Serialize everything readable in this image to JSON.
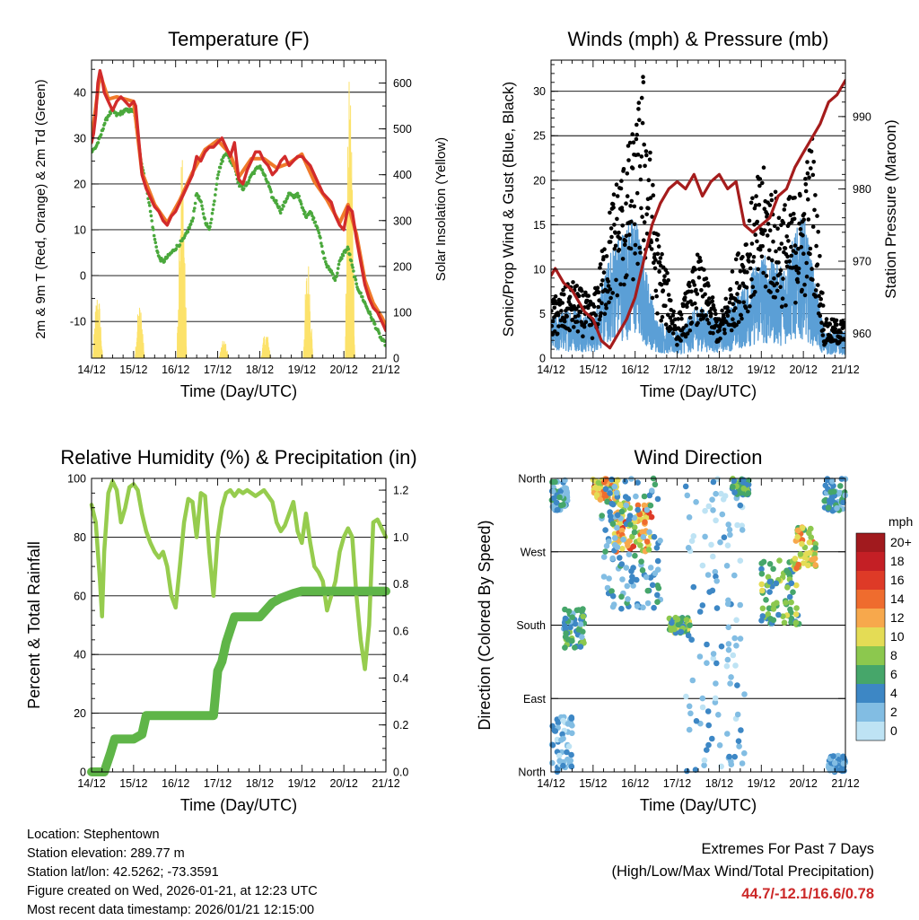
{
  "palette": {
    "temp_2m": "#d22b2b",
    "temp_9m": "#f07a2a",
    "dewpoint": "#4aa83c",
    "solar": "#fce26a",
    "wind": "#5b9fd6",
    "gust": "#000000",
    "pressure": "#a51c1c",
    "rh": "#96cc4e",
    "precip": "#5fb548"
  },
  "chart_data": [
    {
      "id": "temperature",
      "type": "line",
      "title": "Temperature (F)",
      "xlabel": "Time (Day/UTC)",
      "ylabel": "2m & 9m T (Red, Orange) & 2m Td (Green)",
      "y2label": "Solar Insolation (Yellow)",
      "x_ticks": [
        "14/12",
        "15/12",
        "16/12",
        "17/12",
        "18/12",
        "19/12",
        "20/12",
        "21/12"
      ],
      "xlim": [
        0,
        7
      ],
      "ylim": [
        -18,
        47
      ],
      "y_ticks": [
        -10,
        0,
        10,
        20,
        30,
        40
      ],
      "y2lim": [
        0,
        650
      ],
      "y2_ticks": [
        0,
        100,
        200,
        300,
        400,
        500,
        600
      ],
      "series": [
        {
          "name": "2m T",
          "axis": "left",
          "x": [
            0,
            0.05,
            0.1,
            0.15,
            0.2,
            0.25,
            0.3,
            0.4,
            0.5,
            0.6,
            0.7,
            0.8,
            0.9,
            1.0,
            1.05,
            1.1,
            1.2,
            1.3,
            1.35,
            1.45,
            1.5,
            1.6,
            1.7,
            1.8,
            1.9,
            2.0,
            2.1,
            2.2,
            2.3,
            2.4,
            2.5,
            2.6,
            2.7,
            2.8,
            2.9,
            3.0,
            3.1,
            3.2,
            3.3,
            3.4,
            3.5,
            3.6,
            3.7,
            3.8,
            3.9,
            4.0,
            4.1,
            4.2,
            4.3,
            4.4,
            4.5,
            4.6,
            4.7,
            4.8,
            4.9,
            5.0,
            5.1,
            5.2,
            5.3,
            5.4,
            5.5,
            5.6,
            5.7,
            5.8,
            5.9,
            6.0,
            6.1,
            6.2,
            6.3,
            6.4,
            6.5,
            6.6,
            6.7,
            6.8,
            6.9,
            7.0
          ],
          "y": [
            29,
            31,
            35,
            42,
            44.7,
            43,
            40,
            38,
            36,
            38,
            39,
            38,
            37,
            38,
            37,
            32,
            22,
            19,
            18,
            16,
            15,
            14,
            12,
            11,
            13,
            14,
            16,
            18,
            20,
            22,
            26,
            25,
            27,
            28,
            28,
            29,
            30,
            28,
            26,
            29,
            21,
            20,
            23,
            25,
            27,
            27,
            25,
            24,
            22,
            23,
            25,
            26,
            24,
            25,
            26,
            26,
            25,
            24,
            22,
            20,
            18,
            17,
            16,
            13,
            11,
            10,
            15,
            14,
            8,
            3,
            -2,
            -5,
            -7,
            -8,
            -10,
            -12
          ]
        },
        {
          "name": "9m T",
          "axis": "left",
          "x": [
            0,
            0.2,
            0.4,
            0.6,
            0.8,
            1.0,
            1.2,
            1.5,
            1.8,
            2.1,
            2.4,
            2.7,
            3.0,
            3.3,
            3.5,
            3.8,
            4.1,
            4.4,
            4.7,
            5.0,
            5.3,
            5.6,
            5.9,
            6.1,
            6.3,
            6.5,
            6.7,
            6.9,
            7.0
          ],
          "y": [
            29.5,
            44,
            38.5,
            39,
            38.5,
            38,
            22.5,
            15.5,
            11.5,
            16.5,
            22.5,
            27.5,
            29.5,
            26.5,
            21.5,
            25.5,
            25.5,
            23.5,
            24.5,
            26.5,
            20.5,
            16.5,
            11.5,
            15.5,
            9,
            -1,
            -6,
            -9,
            -11
          ]
        },
        {
          "name": "2m Td",
          "axis": "left",
          "x": [
            0,
            0.1,
            0.2,
            0.3,
            0.4,
            0.5,
            0.6,
            0.8,
            1.0,
            1.05,
            1.1,
            1.2,
            1.3,
            1.4,
            1.5,
            1.6,
            1.7,
            1.8,
            1.9,
            2.0,
            2.1,
            2.2,
            2.3,
            2.4,
            2.5,
            2.6,
            2.7,
            2.8,
            2.9,
            3.0,
            3.1,
            3.2,
            3.3,
            3.4,
            3.5,
            3.6,
            3.7,
            3.8,
            3.9,
            4.0,
            4.1,
            4.2,
            4.3,
            4.4,
            4.5,
            4.6,
            4.7,
            4.8,
            4.9,
            5.0,
            5.1,
            5.2,
            5.3,
            5.4,
            5.5,
            5.6,
            5.7,
            5.8,
            5.9,
            6.0,
            6.1,
            6.2,
            6.3,
            6.4,
            6.5,
            6.6,
            6.7,
            6.8,
            6.9,
            7.0
          ],
          "y": [
            27,
            28,
            30,
            33,
            35,
            36,
            35,
            36,
            36,
            34,
            30,
            24,
            20,
            14,
            8,
            4,
            3,
            4,
            5,
            6,
            7,
            8,
            10,
            12,
            18,
            16,
            12,
            10,
            15,
            22,
            25,
            27,
            25,
            24,
            20,
            19,
            20,
            22,
            23,
            24,
            22,
            20,
            17,
            16,
            14,
            16,
            18,
            17,
            18,
            15,
            13,
            14,
            12,
            10,
            5,
            2,
            1,
            -1,
            3,
            5,
            6,
            2,
            -2,
            -4,
            -6,
            -8,
            -10,
            -12,
            -14,
            -15
          ]
        },
        {
          "name": "Solar Insolation",
          "axis": "right",
          "days": [
            0.15,
            1.15,
            2.15,
            3.15,
            4.15,
            5.15,
            6.15
          ],
          "peaks": [
            150,
            120,
            490,
            40,
            60,
            220,
            640
          ]
        }
      ]
    },
    {
      "id": "winds",
      "type": "scatter",
      "title": "Winds (mph) & Pressure (mb)",
      "xlabel": "Time (Day/UTC)",
      "ylabel": "Sonic/Prop Wind & Gust (Blue, Black)",
      "y2label": "Station Pressure (Maroon)",
      "x_ticks": [
        "14/12",
        "15/12",
        "16/12",
        "17/12",
        "18/12",
        "19/12",
        "20/12",
        "21/12"
      ],
      "xlim": [
        0,
        7
      ],
      "ylim": [
        0,
        33.5
      ],
      "y_ticks": [
        0,
        5,
        10,
        15,
        20,
        25,
        30
      ],
      "y2lim": [
        956.6,
        997.8
      ],
      "y2_ticks": [
        960,
        970,
        980,
        990
      ],
      "series": [
        {
          "name": "Wind envelope",
          "axis": "left",
          "x": [
            0,
            0.5,
            1.0,
            1.5,
            2.0,
            2.5,
            3.0,
            3.5,
            4.0,
            4.5,
            5.0,
            5.5,
            6.0,
            6.5,
            7.0
          ],
          "y": [
            3,
            4,
            3,
            9,
            11,
            3,
            2,
            4,
            3,
            5,
            8,
            7,
            11,
            2,
            2
          ]
        },
        {
          "name": "Gust envelope",
          "axis": "left",
          "x": [
            0,
            0.5,
            1.0,
            1.5,
            2.0,
            2.2,
            2.5,
            3.0,
            3.5,
            4.0,
            4.5,
            5.0,
            5.5,
            6.0,
            6.2,
            6.5,
            7.0
          ],
          "y": [
            6,
            8,
            6,
            18,
            24,
            30,
            14,
            4,
            11,
            4,
            12,
            20,
            16,
            18,
            24,
            4,
            4
          ]
        },
        {
          "name": "Station Pressure",
          "axis": "right",
          "x": [
            0,
            0.1,
            0.3,
            0.5,
            0.8,
            1.0,
            1.2,
            1.4,
            1.6,
            1.8,
            2.0,
            2.2,
            2.4,
            2.6,
            2.8,
            3.0,
            3.2,
            3.4,
            3.6,
            3.8,
            4.0,
            4.2,
            4.4,
            4.6,
            4.8,
            5.0,
            5.2,
            5.4,
            5.6,
            5.8,
            6.0,
            6.2,
            6.4,
            6.6,
            6.8,
            7.0
          ],
          "y": [
            968,
            969,
            967,
            966,
            963,
            962,
            959,
            958,
            960,
            962,
            965,
            970,
            975,
            978,
            980,
            981,
            980,
            982,
            979,
            981,
            982,
            980,
            981,
            975,
            974,
            975,
            976,
            979,
            980,
            983,
            985,
            987,
            989,
            992,
            993,
            995
          ]
        }
      ]
    },
    {
      "id": "humidity",
      "type": "line",
      "title": "Relative Humidity (%) & Precipitation (in)",
      "xlabel": "Time (Day/UTC)",
      "ylabel": "Percent & Total Rainfall",
      "x_ticks": [
        "14/12",
        "15/12",
        "16/12",
        "17/12",
        "18/12",
        "19/12",
        "20/12",
        "21/12"
      ],
      "xlim": [
        0,
        7
      ],
      "ylim": [
        0,
        100
      ],
      "y_ticks": [
        0,
        20,
        40,
        60,
        80,
        100
      ],
      "y2lim": [
        0,
        1.25
      ],
      "y2_ticks": [
        0.0,
        0.2,
        0.4,
        0.6,
        0.8,
        1.0,
        1.2
      ],
      "series": [
        {
          "name": "Relative Humidity",
          "axis": "left",
          "x": [
            0,
            0.1,
            0.2,
            0.25,
            0.3,
            0.4,
            0.5,
            0.6,
            0.7,
            0.8,
            0.9,
            1.0,
            1.1,
            1.2,
            1.3,
            1.4,
            1.5,
            1.6,
            1.7,
            1.8,
            1.9,
            2.0,
            2.1,
            2.2,
            2.3,
            2.4,
            2.5,
            2.6,
            2.7,
            2.8,
            2.9,
            3.0,
            3.1,
            3.2,
            3.3,
            3.4,
            3.5,
            3.6,
            3.7,
            3.8,
            3.9,
            4.0,
            4.1,
            4.2,
            4.3,
            4.4,
            4.5,
            4.6,
            4.7,
            4.8,
            4.9,
            5.0,
            5.1,
            5.2,
            5.3,
            5.4,
            5.5,
            5.6,
            5.7,
            5.8,
            5.9,
            6.0,
            6.1,
            6.2,
            6.3,
            6.4,
            6.5,
            6.6,
            6.7,
            6.8,
            6.9,
            7.0
          ],
          "y": [
            91,
            85,
            65,
            53,
            75,
            95,
            99,
            96,
            85,
            90,
            97,
            98,
            96,
            88,
            82,
            78,
            75,
            73,
            75,
            70,
            60,
            56,
            70,
            85,
            93,
            92,
            80,
            95,
            94,
            75,
            60,
            80,
            90,
            95,
            96,
            94,
            96,
            95,
            96,
            95,
            94,
            95,
            96,
            94,
            92,
            85,
            82,
            84,
            88,
            92,
            82,
            78,
            88,
            78,
            70,
            68,
            65,
            55,
            60,
            65,
            75,
            80,
            83,
            80,
            60,
            45,
            35,
            50,
            85,
            86,
            83,
            80
          ]
        },
        {
          "name": "Total Precipitation",
          "axis": "right",
          "x": [
            0,
            0.3,
            0.45,
            0.55,
            1.0,
            1.2,
            1.3,
            2.0,
            2.5,
            2.9,
            3.0,
            3.1,
            3.2,
            3.4,
            4.0,
            4.3,
            4.5,
            4.8,
            5.0,
            6.0,
            7.0
          ],
          "y": [
            0,
            0,
            0.08,
            0.14,
            0.14,
            0.16,
            0.24,
            0.24,
            0.24,
            0.24,
            0.43,
            0.47,
            0.55,
            0.66,
            0.66,
            0.72,
            0.74,
            0.76,
            0.77,
            0.77,
            0.77
          ]
        }
      ]
    },
    {
      "id": "direction",
      "type": "scatter",
      "title": "Wind Direction",
      "xlabel": "Time (Day/UTC)",
      "ylabel": "Direction (Colored By Speed)",
      "x_ticks": [
        "14/12",
        "15/12",
        "16/12",
        "17/12",
        "18/12",
        "19/12",
        "20/12",
        "21/12"
      ],
      "xlim": [
        0,
        7
      ],
      "ylim": [
        0,
        360
      ],
      "y_tick_values": [
        0,
        90,
        180,
        270,
        360
      ],
      "y_tick_labels": [
        "North",
        "East",
        "South",
        "West",
        "North"
      ],
      "colorbar": {
        "title": "mph",
        "labels": [
          "20+",
          "18",
          "16",
          "14",
          "12",
          "10",
          "8",
          "6",
          "4",
          "2",
          "0"
        ],
        "colors": [
          "#a11a1e",
          "#c41f25",
          "#de3a27",
          "#ef6c2e",
          "#f7a84c",
          "#e4dc55",
          "#8cc84e",
          "#46a66a",
          "#3d87c5",
          "#82bde3",
          "#bee3f4"
        ]
      },
      "clusters": [
        {
          "t": [
            0,
            0.4
          ],
          "dir": [
            320,
            360
          ],
          "speed": [
            1,
            6
          ]
        },
        {
          "t": [
            0,
            0.5
          ],
          "dir": [
            0,
            70
          ],
          "speed": [
            0,
            5
          ]
        },
        {
          "t": [
            0.3,
            0.8
          ],
          "dir": [
            150,
            200
          ],
          "speed": [
            2,
            8
          ]
        },
        {
          "t": [
            1.0,
            1.6
          ],
          "dir": [
            330,
            360
          ],
          "speed": [
            8,
            15
          ]
        },
        {
          "t": [
            1.5,
            2.4
          ],
          "dir": [
            270,
            330
          ],
          "speed": [
            8,
            16
          ]
        },
        {
          "t": [
            1.2,
            2.6
          ],
          "dir": [
            200,
            360
          ],
          "speed": [
            1,
            6
          ]
        },
        {
          "t": [
            2.8,
            3.3
          ],
          "dir": [
            170,
            190
          ],
          "speed": [
            3,
            10
          ]
        },
        {
          "t": [
            3.2,
            4.6
          ],
          "dir": [
            0,
            360
          ],
          "speed": [
            0,
            4
          ]
        },
        {
          "t": [
            4.3,
            4.7
          ],
          "dir": [
            340,
            360
          ],
          "speed": [
            3,
            9
          ]
        },
        {
          "t": [
            5.0,
            5.9
          ],
          "dir": [
            180,
            260
          ],
          "speed": [
            3,
            10
          ]
        },
        {
          "t": [
            5.8,
            6.3
          ],
          "dir": [
            250,
            300
          ],
          "speed": [
            6,
            14
          ]
        },
        {
          "t": [
            6.5,
            7.0
          ],
          "dir": [
            320,
            360
          ],
          "speed": [
            2,
            6
          ]
        },
        {
          "t": [
            6.6,
            7.0
          ],
          "dir": [
            0,
            20
          ],
          "speed": [
            2,
            5
          ]
        }
      ]
    }
  ],
  "info": {
    "location": "Location: Stephentown",
    "elevation": "Station elevation: 289.77 m",
    "latlon": "Station lat/lon: 42.5262; -73.3591",
    "created": "Figure created on Wed, 2026-01-21, at 12:23 UTC",
    "latest": "Most recent data timestamp: 2026/01/21 12:15:00"
  },
  "extremes": {
    "title": "Extremes For Past 7 Days",
    "subtitle": "(High/Low/Max Wind/Total Precipitation)",
    "value": "44.7/-12.1/16.6/0.78"
  }
}
